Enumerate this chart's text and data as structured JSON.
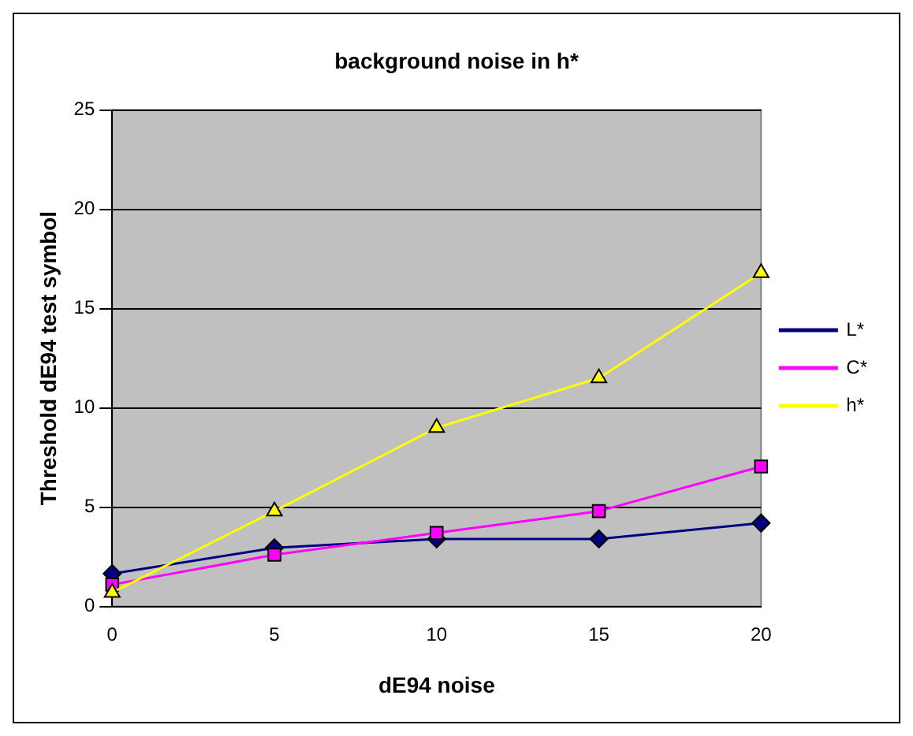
{
  "chart_data": {
    "type": "line",
    "title": "background noise in h*",
    "xlabel": "dE94 noise",
    "ylabel": "Threshold dE94 test symbol",
    "x": [
      0,
      5,
      10,
      15,
      20
    ],
    "xlim": [
      0,
      20
    ],
    "xticks": [
      0,
      5,
      10,
      15,
      20
    ],
    "ylim": [
      0,
      25
    ],
    "yticks": [
      0,
      5,
      10,
      15,
      20,
      25
    ],
    "grid": "y",
    "legend": "right",
    "series": [
      {
        "name": "L*",
        "color": "#000080",
        "marker": "diamond",
        "values": [
          1.65,
          2.95,
          3.4,
          3.4,
          4.2
        ]
      },
      {
        "name": "C*",
        "color": "#ff00ff",
        "marker": "square",
        "values": [
          1.1,
          2.6,
          3.7,
          4.8,
          7.05
        ]
      },
      {
        "name": "h*",
        "color": "#ffff00",
        "marker": "triangle",
        "values": [
          0.7,
          4.8,
          9.0,
          11.5,
          16.8
        ]
      }
    ]
  }
}
